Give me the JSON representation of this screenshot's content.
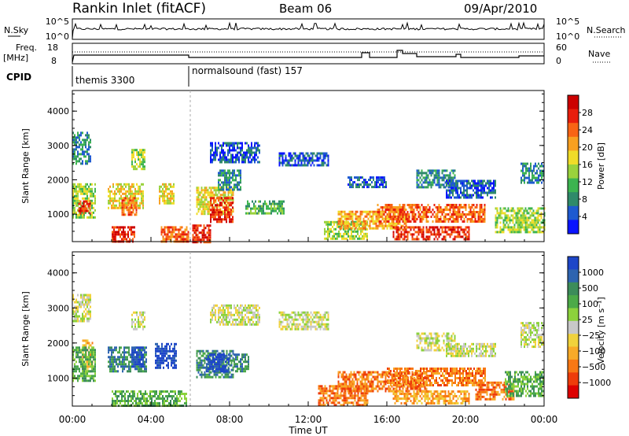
{
  "header": {
    "title": "Rankin Inlet (fitACF)",
    "beam": "Beam 06",
    "date": "09/Apr/2010"
  },
  "top_panels": {
    "nsky_label": "N.Sky",
    "nsky_ticks": [
      "10^5",
      "10^0"
    ],
    "nsearch_label": "N.Search",
    "nsearch_ticks": [
      "10^5",
      "10^0"
    ],
    "freq_label": "Freq.",
    "freq_unit": "[MHz]",
    "freq_ticks": [
      "18",
      "8"
    ],
    "nave_label": "Nave",
    "nave_ticks": [
      "60",
      "0"
    ],
    "cpid_label": "CPID",
    "cpid_segments": [
      {
        "label": "themis 3300",
        "start_hour": 0,
        "end_hour": 6
      },
      {
        "label": "normalsound (fast) 157",
        "start_hour": 6,
        "end_hour": 24
      }
    ]
  },
  "chart_data": [
    {
      "type": "heatmap",
      "name": "power",
      "ylabel": "Slant Range [km]",
      "yticks": [
        1000,
        2000,
        3000,
        4000
      ],
      "ylim": [
        200,
        4600
      ],
      "xlim": [
        0,
        24
      ],
      "colorbar": {
        "label": "Power [dB]",
        "ticks": [
          "4",
          "8",
          "12",
          "16",
          "20",
          "24",
          "28"
        ],
        "colors": [
          "#0a14ff",
          "#1e5ad0",
          "#2f8a6a",
          "#3cb450",
          "#9ad23c",
          "#f0dc28",
          "#f8a020",
          "#f86414",
          "#e81e0c",
          "#cc0000"
        ]
      },
      "echo_regions": [
        {
          "t0": 0.0,
          "t1": 0.9,
          "r0": 2500,
          "r1": 3400,
          "level": 2
        },
        {
          "t0": 0.0,
          "t1": 1.2,
          "r0": 900,
          "r1": 1900,
          "level": 4
        },
        {
          "t0": 0.3,
          "t1": 0.9,
          "r0": 1000,
          "r1": 1400,
          "level": 8
        },
        {
          "t0": 2.0,
          "t1": 3.2,
          "r0": 200,
          "r1": 650,
          "level": 8
        },
        {
          "t0": 1.8,
          "t1": 3.6,
          "r0": 1200,
          "r1": 1900,
          "level": 5
        },
        {
          "t0": 2.5,
          "t1": 3.3,
          "r0": 1000,
          "r1": 1500,
          "level": 7
        },
        {
          "t0": 3.0,
          "t1": 3.7,
          "r0": 2300,
          "r1": 2900,
          "level": 4
        },
        {
          "t0": 4.4,
          "t1": 5.2,
          "r0": 1300,
          "r1": 1900,
          "level": 5
        },
        {
          "t0": 4.5,
          "t1": 5.9,
          "r0": 200,
          "r1": 650,
          "level": 7
        },
        {
          "t0": 6.1,
          "t1": 7.0,
          "r0": 200,
          "r1": 700,
          "level": 8
        },
        {
          "t0": 6.3,
          "t1": 8.2,
          "r0": 1000,
          "r1": 1800,
          "level": 5
        },
        {
          "t0": 7.0,
          "t1": 8.2,
          "r0": 800,
          "r1": 1500,
          "level": 8
        },
        {
          "t0": 7.4,
          "t1": 8.6,
          "r0": 1700,
          "r1": 2300,
          "level": 2
        },
        {
          "t0": 7.0,
          "t1": 9.5,
          "r0": 2500,
          "r1": 3100,
          "level": 1
        },
        {
          "t0": 8.8,
          "t1": 10.8,
          "r0": 1000,
          "r1": 1400,
          "level": 3
        },
        {
          "t0": 12.8,
          "t1": 15.0,
          "r0": 300,
          "r1": 800,
          "level": 4
        },
        {
          "t0": 13.5,
          "t1": 17.0,
          "r0": 600,
          "r1": 1100,
          "level": 6
        },
        {
          "t0": 15.5,
          "t1": 21.0,
          "r0": 800,
          "r1": 1300,
          "level": 7
        },
        {
          "t0": 16.3,
          "t1": 20.2,
          "r0": 300,
          "r1": 650,
          "level": 8
        },
        {
          "t0": 17.5,
          "t1": 19.5,
          "r0": 1800,
          "r1": 2300,
          "level": 2
        },
        {
          "t0": 19.0,
          "t1": 21.5,
          "r0": 1500,
          "r1": 2000,
          "level": 1
        },
        {
          "t0": 21.5,
          "t1": 24.0,
          "r0": 500,
          "r1": 1200,
          "level": 4
        },
        {
          "t0": 22.8,
          "t1": 24.0,
          "r0": 1900,
          "r1": 2500,
          "level": 2
        },
        {
          "t0": 14.0,
          "t1": 16.0,
          "r0": 1800,
          "r1": 2100,
          "level": 1
        },
        {
          "t0": 10.5,
          "t1": 13.0,
          "r0": 2400,
          "r1": 2800,
          "level": 1
        }
      ]
    },
    {
      "type": "heatmap",
      "name": "velocity",
      "ylabel": "Slant Range [km]",
      "yticks": [
        1000,
        2000,
        3000,
        4000
      ],
      "ylim": [
        200,
        4600
      ],
      "xlim": [
        0,
        24
      ],
      "xlabel": "Time UT",
      "xticks": [
        "00:00",
        "04:00",
        "08:00",
        "12:00",
        "16:00",
        "20:00",
        "00:00"
      ],
      "colorbar": {
        "label": "Velocity [m s⁻¹]",
        "ticks": [
          "1000",
          "500",
          "100",
          "25",
          "−25",
          "−100",
          "−500",
          "−1000"
        ],
        "colors": [
          "#1e46c8",
          "#2e64b0",
          "#3c8c5a",
          "#4caa48",
          "#8cd23c",
          "#c8c8c8",
          "#f0d23c",
          "#f8aa28",
          "#f87814",
          "#ee3c0a",
          "#dd0000"
        ]
      },
      "echo_regions": [
        {
          "t0": 0.0,
          "t1": 0.9,
          "r0": 2600,
          "r1": 3400,
          "level": 5
        },
        {
          "t0": 0.5,
          "t1": 1.0,
          "r0": 1200,
          "r1": 2100,
          "level": 7
        },
        {
          "t0": 0.0,
          "t1": 1.2,
          "r0": 900,
          "r1": 1900,
          "level": 3
        },
        {
          "t0": 1.8,
          "t1": 3.8,
          "r0": 1200,
          "r1": 1900,
          "level": 2
        },
        {
          "t0": 3.0,
          "t1": 3.6,
          "r0": 1300,
          "r1": 1900,
          "level": 0
        },
        {
          "t0": 4.2,
          "t1": 5.3,
          "r0": 1300,
          "r1": 2000,
          "level": 0
        },
        {
          "t0": 2.0,
          "t1": 5.8,
          "r0": 200,
          "r1": 650,
          "level": 3
        },
        {
          "t0": 3.0,
          "t1": 3.7,
          "r0": 2400,
          "r1": 2900,
          "level": 5
        },
        {
          "t0": 6.3,
          "t1": 8.2,
          "r0": 1000,
          "r1": 1800,
          "level": 2
        },
        {
          "t0": 6.8,
          "t1": 8.0,
          "r0": 1200,
          "r1": 1700,
          "level": 0
        },
        {
          "t0": 8.2,
          "t1": 9.0,
          "r0": 1200,
          "r1": 1700,
          "level": 2
        },
        {
          "t0": 7.0,
          "t1": 9.5,
          "r0": 2500,
          "r1": 3100,
          "level": 5
        },
        {
          "t0": 12.5,
          "t1": 15.0,
          "r0": 200,
          "r1": 800,
          "level": 8
        },
        {
          "t0": 13.5,
          "t1": 18.0,
          "r0": 600,
          "r1": 1200,
          "level": 8
        },
        {
          "t0": 16.0,
          "t1": 21.0,
          "r0": 800,
          "r1": 1300,
          "level": 8
        },
        {
          "t0": 16.3,
          "t1": 20.2,
          "r0": 300,
          "r1": 650,
          "level": 7
        },
        {
          "t0": 20.5,
          "t1": 22.5,
          "r0": 400,
          "r1": 900,
          "level": 8
        },
        {
          "t0": 22.0,
          "t1": 24.0,
          "r0": 500,
          "r1": 1200,
          "level": 3
        },
        {
          "t0": 17.5,
          "t1": 19.5,
          "r0": 1800,
          "r1": 2300,
          "level": 5
        },
        {
          "t0": 19.0,
          "t1": 21.5,
          "r0": 1600,
          "r1": 2000,
          "level": 5
        },
        {
          "t0": 22.8,
          "t1": 24.0,
          "r0": 1900,
          "r1": 2600,
          "level": 5
        },
        {
          "t0": 10.5,
          "t1": 13.0,
          "r0": 2400,
          "r1": 2900,
          "level": 5
        }
      ]
    }
  ]
}
